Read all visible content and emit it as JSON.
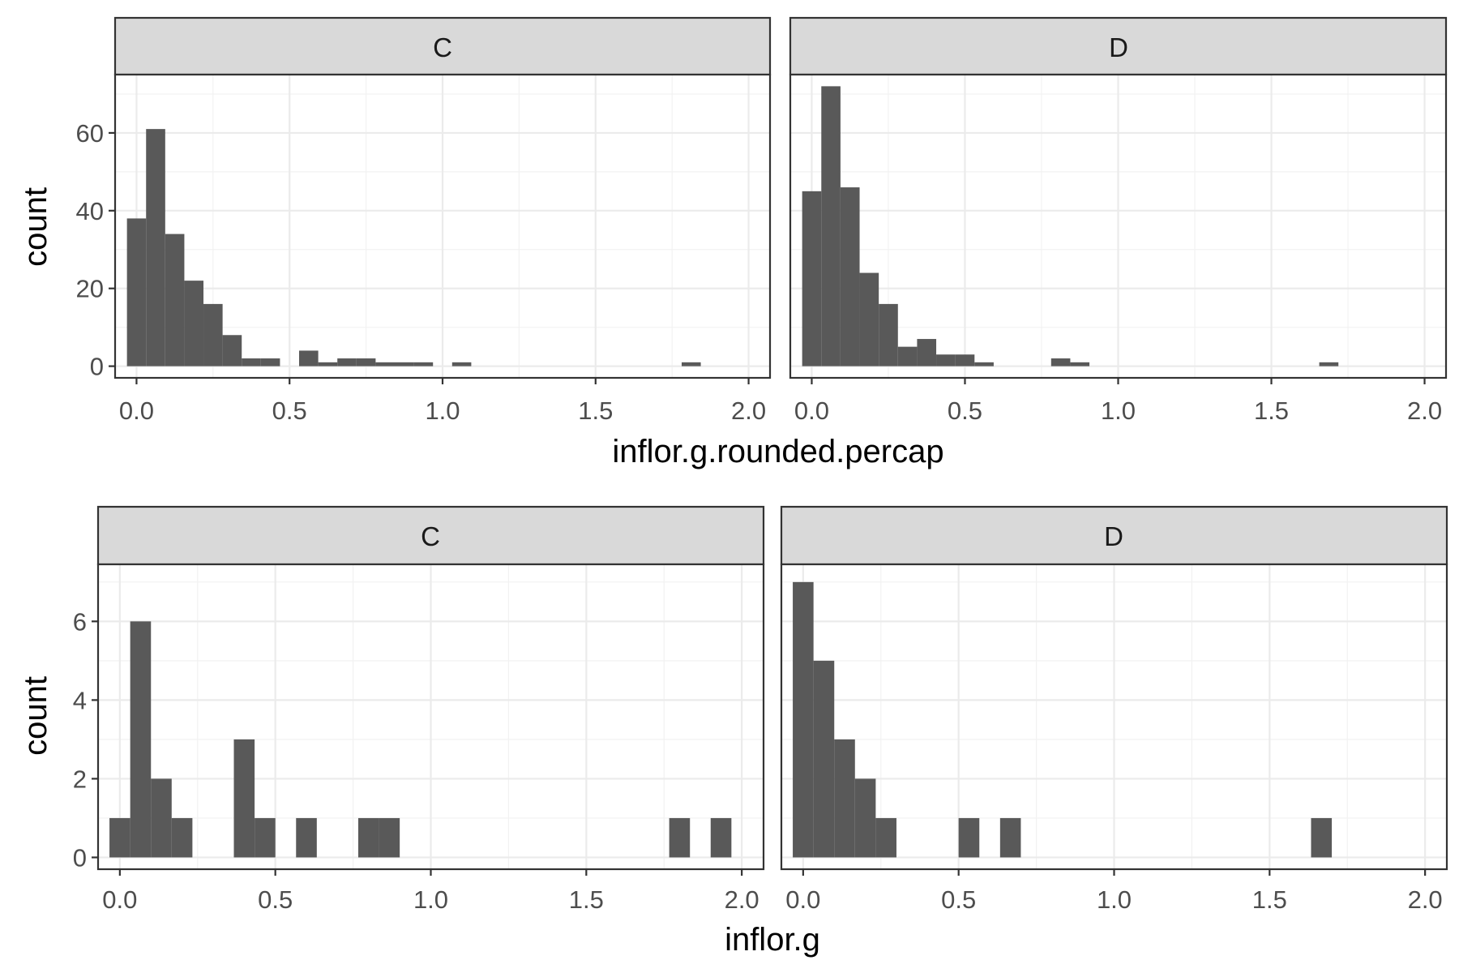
{
  "chart_data": [
    {
      "type": "bar",
      "xlabel": "inflor.g.rounded.percap",
      "ylabel": "count",
      "xlim": [
        -0.07,
        2.07
      ],
      "ylim": [
        -3,
        75
      ],
      "xticks": [
        "0.0",
        "0.5",
        "1.0",
        "1.5",
        "2.0"
      ],
      "yticks": [
        "0",
        "20",
        "40",
        "60"
      ],
      "xtick_values": [
        0,
        0.5,
        1,
        1.5,
        2
      ],
      "ytick_values": [
        0,
        20,
        40,
        60
      ],
      "grid": true,
      "bin_width": 0.0625,
      "bar_color": "#595959",
      "panels": [
        {
          "label": "C",
          "bins": [
            {
              "x": 0.0,
              "y": 38
            },
            {
              "x": 0.0625,
              "y": 61
            },
            {
              "x": 0.125,
              "y": 34
            },
            {
              "x": 0.1875,
              "y": 22
            },
            {
              "x": 0.25,
              "y": 16
            },
            {
              "x": 0.3125,
              "y": 8
            },
            {
              "x": 0.375,
              "y": 2
            },
            {
              "x": 0.4375,
              "y": 2
            },
            {
              "x": 0.5625,
              "y": 4
            },
            {
              "x": 0.625,
              "y": 1
            },
            {
              "x": 0.6875,
              "y": 2
            },
            {
              "x": 0.75,
              "y": 2
            },
            {
              "x": 0.8125,
              "y": 1
            },
            {
              "x": 0.875,
              "y": 1
            },
            {
              "x": 0.9375,
              "y": 1
            },
            {
              "x": 1.0625,
              "y": 1
            },
            {
              "x": 1.8125,
              "y": 1
            }
          ]
        },
        {
          "label": "D",
          "bins": [
            {
              "x": 0.0,
              "y": 45
            },
            {
              "x": 0.0625,
              "y": 72
            },
            {
              "x": 0.125,
              "y": 46
            },
            {
              "x": 0.1875,
              "y": 24
            },
            {
              "x": 0.25,
              "y": 16
            },
            {
              "x": 0.3125,
              "y": 5
            },
            {
              "x": 0.375,
              "y": 7
            },
            {
              "x": 0.4375,
              "y": 3
            },
            {
              "x": 0.5,
              "y": 3
            },
            {
              "x": 0.5625,
              "y": 1
            },
            {
              "x": 0.8125,
              "y": 2
            },
            {
              "x": 0.875,
              "y": 1
            },
            {
              "x": 1.6875,
              "y": 1
            }
          ]
        }
      ]
    },
    {
      "type": "bar",
      "xlabel": "inflor.g",
      "ylabel": "count",
      "xlim": [
        -0.07,
        2.07
      ],
      "ylim": [
        -0.3,
        7.45
      ],
      "xticks": [
        "0.0",
        "0.5",
        "1.0",
        "1.5",
        "2.0"
      ],
      "yticks": [
        "0",
        "2",
        "4",
        "6"
      ],
      "xtick_values": [
        0,
        0.5,
        1,
        1.5,
        2
      ],
      "ytick_values": [
        0,
        2,
        4,
        6
      ],
      "grid": true,
      "bin_width": 0.0667,
      "bar_color": "#595959",
      "panels": [
        {
          "label": "C",
          "bins": [
            {
              "x": 0.0,
              "y": 1
            },
            {
              "x": 0.0667,
              "y": 6
            },
            {
              "x": 0.1333,
              "y": 2
            },
            {
              "x": 0.2,
              "y": 1
            },
            {
              "x": 0.4,
              "y": 3
            },
            {
              "x": 0.4667,
              "y": 1
            },
            {
              "x": 0.6,
              "y": 1
            },
            {
              "x": 0.8,
              "y": 1
            },
            {
              "x": 0.8667,
              "y": 1
            },
            {
              "x": 1.8,
              "y": 1
            },
            {
              "x": 1.9333,
              "y": 1
            }
          ]
        },
        {
          "label": "D",
          "bins": [
            {
              "x": 0.0,
              "y": 7
            },
            {
              "x": 0.0667,
              "y": 5
            },
            {
              "x": 0.1333,
              "y": 3
            },
            {
              "x": 0.2,
              "y": 2
            },
            {
              "x": 0.2667,
              "y": 1
            },
            {
              "x": 0.5333,
              "y": 1
            },
            {
              "x": 0.6667,
              "y": 1
            },
            {
              "x": 1.6667,
              "y": 1
            }
          ]
        }
      ]
    }
  ]
}
